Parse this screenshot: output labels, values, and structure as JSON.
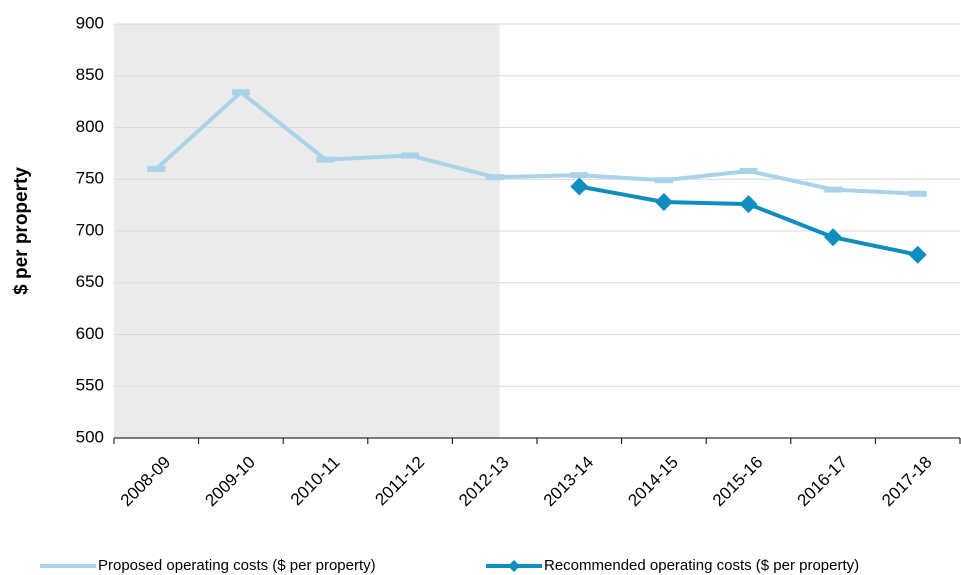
{
  "chart_data": {
    "type": "line",
    "y_label": "$ per property",
    "categories": [
      "2008-09",
      "2009-10",
      "2010-11",
      "2011-12",
      "2012-13",
      "2013-14",
      "2014-15",
      "2015-16",
      "2016-17",
      "2017-18"
    ],
    "series": [
      {
        "name": "Proposed operating costs ($ per property)",
        "color": "#a8d3e8",
        "values": [
          760,
          834,
          769,
          773,
          752,
          754,
          749,
          758,
          740,
          736
        ]
      },
      {
        "name": "Recommended operating costs ($ per property)",
        "color": "#0f8cc0",
        "values": [
          null,
          null,
          null,
          null,
          null,
          743,
          728,
          726,
          694,
          677
        ]
      }
    ],
    "ylim": [
      500,
      900
    ],
    "yticks": [
      500,
      550,
      600,
      650,
      700,
      750,
      800,
      850,
      900
    ],
    "grid": true
  }
}
